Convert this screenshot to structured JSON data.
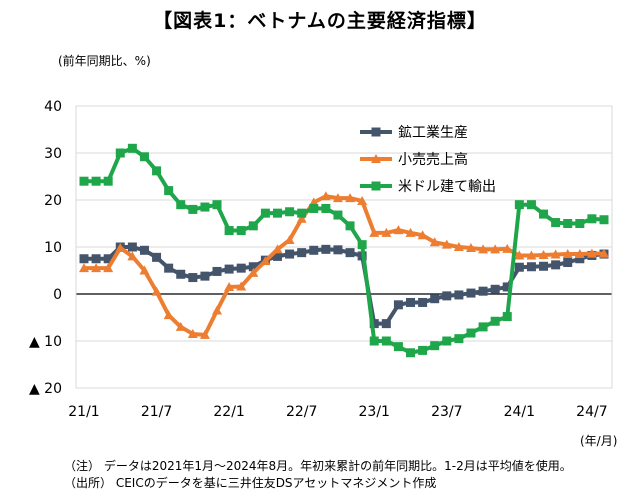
{
  "chart_data": {
    "type": "line",
    "title": "【図表1：ベトナムの主要経済指標】",
    "ylabel": "(前年同期比、%)",
    "xlabel": "(年/月)",
    "ylim": [
      -20,
      40
    ],
    "yticks": [
      {
        "value": 40,
        "label": "40"
      },
      {
        "value": 30,
        "label": "30"
      },
      {
        "value": 20,
        "label": "20"
      },
      {
        "value": 10,
        "label": "10"
      },
      {
        "value": 0,
        "label": "0"
      },
      {
        "value": -10,
        "label": "▲ 10"
      },
      {
        "value": -20,
        "label": "▲ 20"
      }
    ],
    "xticks": [
      {
        "index": 0,
        "label": "21/1"
      },
      {
        "index": 6,
        "label": "21/7"
      },
      {
        "index": 12,
        "label": "22/1"
      },
      {
        "index": 18,
        "label": "22/7"
      },
      {
        "index": 24,
        "label": "23/1"
      },
      {
        "index": 30,
        "label": "23/7"
      },
      {
        "index": 36,
        "label": "24/1"
      },
      {
        "index": 42,
        "label": "24/7"
      }
    ],
    "x": [
      "2021-01",
      "2021-02",
      "2021-03",
      "2021-04",
      "2021-05",
      "2021-06",
      "2021-07",
      "2021-08",
      "2021-09",
      "2021-10",
      "2021-11",
      "2021-12",
      "2022-01",
      "2022-02",
      "2022-03",
      "2022-04",
      "2022-05",
      "2022-06",
      "2022-07",
      "2022-08",
      "2022-09",
      "2022-10",
      "2022-11",
      "2022-12",
      "2023-01",
      "2023-02",
      "2023-03",
      "2023-04",
      "2023-05",
      "2023-06",
      "2023-07",
      "2023-08",
      "2023-09",
      "2023-10",
      "2023-11",
      "2023-12",
      "2024-01",
      "2024-02",
      "2024-03",
      "2024-04",
      "2024-05",
      "2024-06",
      "2024-07",
      "2024-08"
    ],
    "grid": true,
    "legend": "top-right",
    "series": [
      {
        "name": "鉱工業生産",
        "color": "#44546a",
        "marker": "square",
        "values": [
          7.5,
          7.5,
          7.5,
          10,
          10,
          9.3,
          7.8,
          5.5,
          4.2,
          3.5,
          3.8,
          4.8,
          5.3,
          5.5,
          5.8,
          7.2,
          8.0,
          8.5,
          8.8,
          9.3,
          9.5,
          9.4,
          8.8,
          8.1,
          -6.3,
          -6.3,
          -2.3,
          -1.8,
          -1.8,
          -1.0,
          -0.4,
          -0.2,
          0.2,
          0.6,
          1.0,
          1.5,
          5.7,
          5.8,
          5.9,
          6.2,
          6.7,
          7.5,
          8.2,
          8.5
        ]
      },
      {
        "name": "小売売上高",
        "color": "#ed7d31",
        "marker": "triangle",
        "values": [
          5.5,
          5.5,
          5.5,
          9.8,
          8.0,
          5.0,
          0.5,
          -4.5,
          -7.0,
          -8.5,
          -8.7,
          -3.5,
          1.5,
          1.6,
          4.5,
          7.0,
          9.5,
          11.5,
          16.0,
          19.5,
          20.8,
          20.4,
          20.4,
          19.8,
          13.0,
          13.0,
          13.6,
          13.0,
          12.5,
          11.0,
          10.5,
          10.0,
          9.8,
          9.5,
          9.5,
          9.6,
          8.2,
          8.2,
          8.3,
          8.4,
          8.5,
          8.5,
          8.6,
          8.6
        ]
      },
      {
        "name": "米ドル建て輸出",
        "color": "#1fa64a",
        "marker": "square",
        "values": [
          24,
          24,
          24,
          30,
          31,
          29.2,
          26.2,
          22,
          19,
          18,
          18.5,
          19,
          13.5,
          13.5,
          14.5,
          17.2,
          17.2,
          17.5,
          17.2,
          18.2,
          18.2,
          16.8,
          14.5,
          10.5,
          -10.0,
          -10.0,
          -11.2,
          -12.5,
          -12.0,
          -11.0,
          -10.0,
          -9.5,
          -8.3,
          -7.0,
          -5.8,
          -4.8,
          19,
          19,
          17,
          15.2,
          15,
          15,
          16,
          15.8
        ]
      }
    ],
    "notes": [
      "（注） データは2021年1月～2024年8月。年初来累計の前年同期比。1-2月は平均値を使用。",
      "（出所） CEICのデータを基に三井住友DSアセットマネジメント作成"
    ]
  }
}
